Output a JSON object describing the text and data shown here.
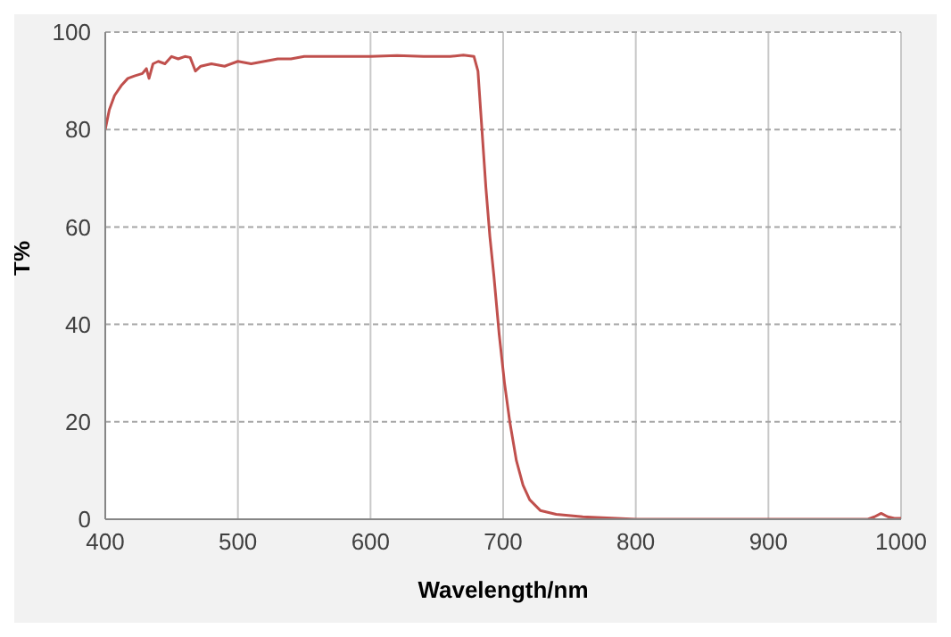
{
  "chart_data": {
    "type": "line",
    "xlabel": "Wavelength/nm",
    "ylabel": "T%",
    "xlim": [
      400,
      1000
    ],
    "ylim": [
      0,
      100
    ],
    "xticks": [
      400,
      500,
      600,
      700,
      800,
      900,
      1000
    ],
    "yticks": [
      0,
      20,
      40,
      60,
      80,
      100
    ],
    "grid": true,
    "marker": "none",
    "line_style": "solid",
    "x": [
      400,
      403,
      407,
      412,
      417,
      422,
      428,
      431,
      433,
      436,
      440,
      445,
      450,
      455,
      460,
      464,
      468,
      472,
      480,
      490,
      500,
      510,
      520,
      530,
      540,
      550,
      560,
      580,
      600,
      620,
      640,
      660,
      670,
      678,
      681,
      684,
      687,
      690,
      693,
      697,
      701,
      705,
      710,
      715,
      720,
      728,
      740,
      760,
      800,
      850,
      900,
      950,
      975,
      980,
      985,
      990,
      995,
      1000
    ],
    "series": [
      {
        "color": "#c0504d",
        "values": [
          80,
          84,
          87,
          89,
          90.5,
          91,
          91.5,
          92.5,
          90.5,
          93.5,
          94,
          93.5,
          95,
          94.5,
          95,
          94.8,
          92,
          93,
          93.5,
          93,
          94,
          93.5,
          94,
          94.5,
          94.5,
          95,
          95,
          95,
          95,
          95.2,
          95,
          95,
          95.3,
          95,
          92,
          80,
          68,
          58,
          50,
          38,
          28,
          20,
          12,
          7,
          4,
          1.8,
          1,
          0.5,
          0,
          0,
          0,
          0,
          0,
          0.5,
          1.2,
          0.5,
          0.2,
          0.2
        ]
      }
    ]
  }
}
